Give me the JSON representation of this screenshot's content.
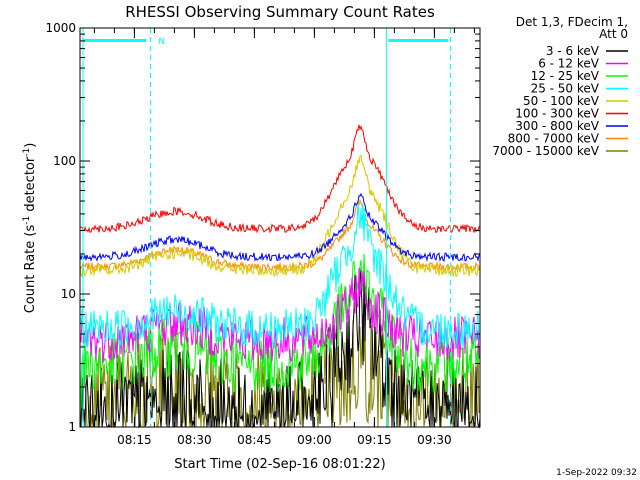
{
  "chart_data": {
    "type": "line",
    "title": "RHESSI Observing Summary Count Rates",
    "xlabel": "Start Time (02-Sep-16 08:01:22)",
    "ylabel_main": "Count Rate (s",
    "ylabel_sup1": "-1",
    "ylabel_mid": " detector",
    "ylabel_sup2": "-1",
    "ylabel_end": ")",
    "yscale": "log",
    "ylim": [
      1,
      1000
    ],
    "xlim_minutes": [
      0,
      100
    ],
    "x_ticks": [
      "08:15",
      "08:30",
      "08:45",
      "09:00",
      "09:15",
      "09:30"
    ],
    "x_tick_minutes": [
      13.6,
      28.6,
      43.6,
      58.6,
      73.6,
      88.6
    ],
    "y_ticks": [
      "1",
      "10",
      "100",
      "1000"
    ],
    "y_tick_values": [
      1,
      10,
      100,
      1000
    ],
    "legend_header": [
      "Det 1,3, FDecim 1,",
      "Att 0"
    ],
    "legend_position": "right",
    "timestamp": "1-Sep-2022 09:32",
    "annotation": "N",
    "markers": {
      "night_start_minute": 17.6,
      "night_end_minute": 92.6,
      "flare_minute": 76.6,
      "night_label_minute": 19.6
    },
    "series": [
      {
        "name": "3 - 6 keV",
        "color": "#000000",
        "base": 1.2,
        "peak": 6,
        "noise": 0.8,
        "floor": 1
      },
      {
        "name": "6 - 12 keV",
        "color": "#ff00ff",
        "base": 4.5,
        "peak": 10,
        "noise": 0.35,
        "floor": 3
      },
      {
        "name": "12 - 25 keV",
        "color": "#00ff00",
        "base": 3,
        "peak": 12,
        "noise": 0.45,
        "floor": 1.8
      },
      {
        "name": "25 - 50 keV",
        "color": "#00ffff",
        "base": 5.5,
        "peak": 30,
        "noise": 0.3,
        "floor": 4
      },
      {
        "name": "50 - 100 keV",
        "color": "#d8c800",
        "base": 15,
        "peak": 80,
        "noise": 0.09,
        "floor": 10
      },
      {
        "name": "100 - 300 keV",
        "color": "#ff0000",
        "base": 31,
        "peak": 140,
        "noise": 0.06,
        "floor": 20
      },
      {
        "name": "300 - 800 keV",
        "color": "#0000ff",
        "base": 19,
        "peak": 45,
        "noise": 0.06,
        "floor": 12
      },
      {
        "name": "800 - 7000 keV",
        "color": "#ff8c00",
        "base": 16,
        "peak": 40,
        "noise": 0.06,
        "floor": 10
      },
      {
        "name": "7000 - 15000 keV",
        "color": "#808000",
        "base": 1.5,
        "peak": 3,
        "noise": 0.9,
        "floor": 1
      }
    ]
  }
}
